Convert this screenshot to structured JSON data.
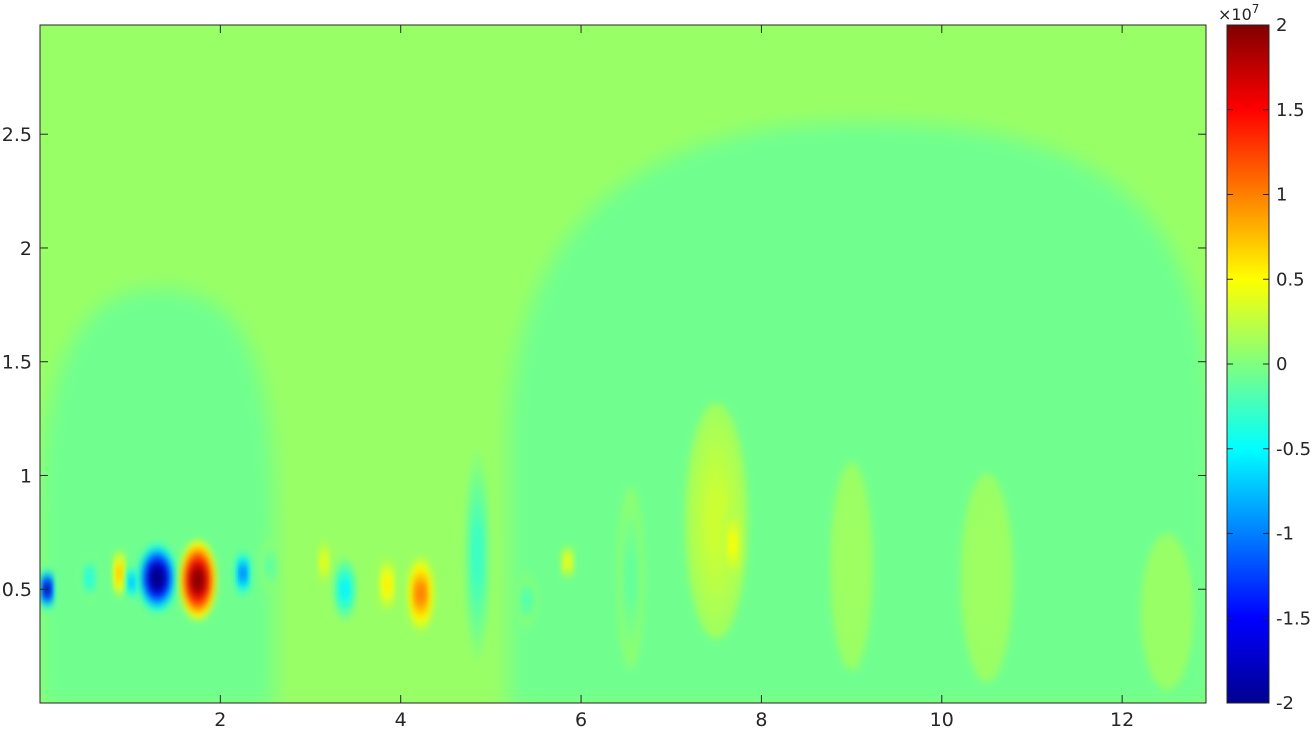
{
  "chart_data": {
    "type": "heatmap",
    "title": "",
    "xlabel": "",
    "ylabel": "",
    "xlim": [
      0,
      12.93
    ],
    "ylim": [
      0,
      2.98
    ],
    "x_ticks": [
      2,
      4,
      6,
      8,
      10,
      12
    ],
    "y_ticks": [
      0.5,
      1,
      1.5,
      2,
      2.5
    ],
    "colorbar": {
      "colormap": "jet",
      "clim": [
        -2,
        2
      ],
      "ticks": [
        -2,
        -1.5,
        -1,
        -0.5,
        0,
        0.5,
        1,
        1.5,
        2
      ],
      "exponent_label": "×10",
      "exponent": "7"
    },
    "background_value": 0.1,
    "regions": [
      {
        "shape": "dome",
        "x": [
          0,
          2.6
        ],
        "y_top": 1.82,
        "value": -0.06
      },
      {
        "shape": "dome",
        "x": [
          5.2,
          13
        ],
        "y_top": 2.55,
        "value": -0.06
      }
    ],
    "features": [
      {
        "x": 0.08,
        "y": 0.5,
        "rx": 0.06,
        "ry": 0.08,
        "value": -2.0
      },
      {
        "x": 0.55,
        "y": 0.55,
        "rx": 0.08,
        "ry": 0.09,
        "value": -0.4
      },
      {
        "x": 0.88,
        "y": 0.57,
        "rx": 0.05,
        "ry": 0.09,
        "value": 0.8
      },
      {
        "x": 1.02,
        "y": 0.53,
        "rx": 0.05,
        "ry": 0.07,
        "value": -0.9
      },
      {
        "x": 1.3,
        "y": 0.55,
        "rx": 0.18,
        "ry": 0.13,
        "value": -2.2
      },
      {
        "x": 1.75,
        "y": 0.54,
        "rx": 0.17,
        "ry": 0.15,
        "value": 2.1
      },
      {
        "x": 2.25,
        "y": 0.57,
        "rx": 0.07,
        "ry": 0.09,
        "value": -1.1
      },
      {
        "x": 2.55,
        "y": 0.6,
        "rx": 0.08,
        "ry": 0.1,
        "value": -0.15
      },
      {
        "x": 3.15,
        "y": 0.62,
        "rx": 0.05,
        "ry": 0.08,
        "value": 0.45
      },
      {
        "x": 3.38,
        "y": 0.5,
        "rx": 0.1,
        "ry": 0.12,
        "value": -0.55
      },
      {
        "x": 3.85,
        "y": 0.52,
        "rx": 0.07,
        "ry": 0.1,
        "value": 0.6
      },
      {
        "x": 4.22,
        "y": 0.48,
        "rx": 0.12,
        "ry": 0.14,
        "value": 1.05
      },
      {
        "x": 4.85,
        "y": 0.65,
        "rx": 0.11,
        "ry": 0.4,
        "value": -0.3
      },
      {
        "x": 5.4,
        "y": 0.45,
        "rx": 0.09,
        "ry": 0.1,
        "value": -0.2
      },
      {
        "x": 5.85,
        "y": 0.62,
        "rx": 0.05,
        "ry": 0.06,
        "value": 0.45
      },
      {
        "x": 6.55,
        "y": 0.55,
        "rx": 0.12,
        "ry": 0.35,
        "value": -0.12
      },
      {
        "x": 7.5,
        "y": 0.8,
        "rx": 0.3,
        "ry": 0.45,
        "value": 0.3
      },
      {
        "x": 7.68,
        "y": 0.7,
        "rx": 0.08,
        "ry": 0.14,
        "value": 0.5
      },
      {
        "x": 9.0,
        "y": 0.6,
        "rx": 0.2,
        "ry": 0.4,
        "value": 0.12
      },
      {
        "x": 10.5,
        "y": 0.55,
        "rx": 0.25,
        "ry": 0.4,
        "value": 0.12
      },
      {
        "x": 12.5,
        "y": 0.4,
        "rx": 0.25,
        "ry": 0.3,
        "value": 0.1
      }
    ]
  }
}
